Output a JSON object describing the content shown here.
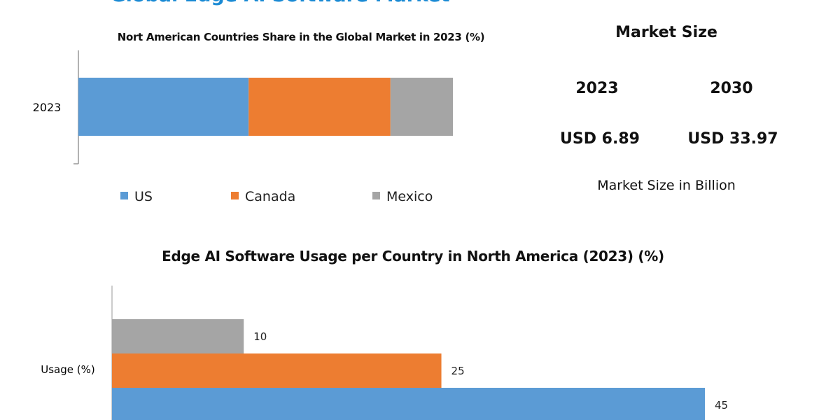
{
  "title": "Global Edge AI Software Market",
  "market_panel": {
    "heading": "Market Size",
    "years": [
      "2023",
      "2030"
    ],
    "values": [
      "USD 6.89",
      "USD 33.97"
    ],
    "note": "Market Size in Billion"
  },
  "colors": {
    "US": "#5b9bd5",
    "Canada": "#ed7d31",
    "Mexico": "#a5a5a5",
    "title": "#1a8ad4"
  },
  "chart_data": [
    {
      "type": "bar",
      "orientation": "horizontal",
      "stacked": true,
      "title": "Nort American Countries Share in the Global Market in 2023 (%)",
      "categories": [
        "2023"
      ],
      "series": [
        {
          "name": "US",
          "values": [
            45
          ]
        },
        {
          "name": "Canada",
          "values": [
            37.5
          ]
        },
        {
          "name": "Mexico",
          "values": [
            16.5
          ]
        }
      ],
      "legend": "bottom",
      "grid": false
    },
    {
      "type": "bar",
      "orientation": "horizontal",
      "title": "Edge AI Software Usage per Country in North America (2023) (%)",
      "category_label": "Usage (%)",
      "bars": [
        {
          "country": "Mexico",
          "value": 10,
          "label": "10"
        },
        {
          "country": "Canada",
          "value": 25,
          "label": "25"
        },
        {
          "country": "US",
          "value": 45,
          "label": "45"
        }
      ],
      "grid": false
    }
  ]
}
